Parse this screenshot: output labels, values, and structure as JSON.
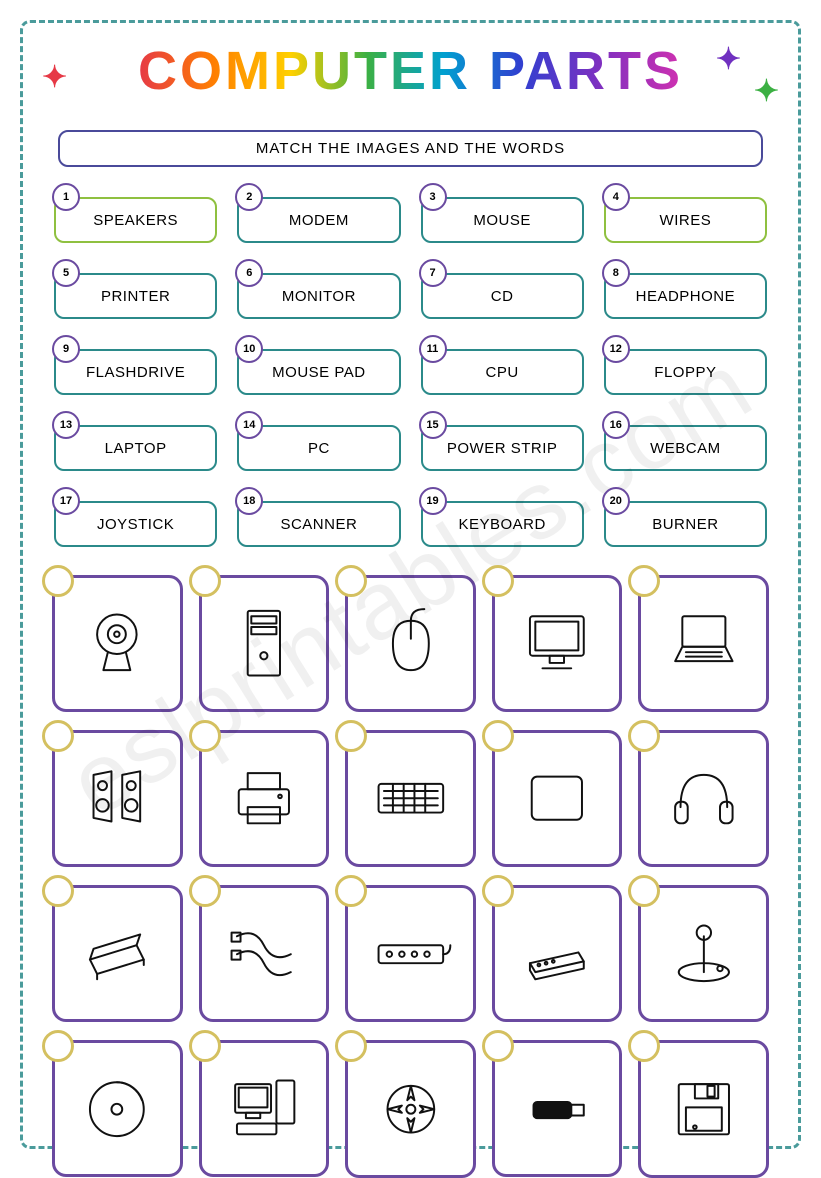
{
  "title": "COMPUTER PARTS",
  "instruction": "MATCH THE IMAGES AND THE WORDS",
  "watermark": "eslprintables.com",
  "word_box": {
    "green_border": "#8fc040",
    "teal_border": "#2b8a8a",
    "badge_border": "#6a4aa0"
  },
  "image_box": {
    "border": "#6a4aa0",
    "badge_border": "#d4c060"
  },
  "words": [
    {
      "n": "1",
      "label": "SPEAKERS",
      "style": "green"
    },
    {
      "n": "2",
      "label": "MODEM",
      "style": "teal"
    },
    {
      "n": "3",
      "label": "MOUSE",
      "style": "teal"
    },
    {
      "n": "4",
      "label": "WIRES",
      "style": "green"
    },
    {
      "n": "5",
      "label": "PRINTER",
      "style": "teal"
    },
    {
      "n": "6",
      "label": "MONITOR",
      "style": "teal"
    },
    {
      "n": "7",
      "label": "CD",
      "style": "teal"
    },
    {
      "n": "8",
      "label": "HEADPHONE",
      "style": "teal"
    },
    {
      "n": "9",
      "label": "FLASHDRIVE",
      "style": "teal"
    },
    {
      "n": "10",
      "label": "MOUSE PAD",
      "style": "teal"
    },
    {
      "n": "11",
      "label": "CPU",
      "style": "teal"
    },
    {
      "n": "12",
      "label": "FLOPPY",
      "style": "teal"
    },
    {
      "n": "13",
      "label": "LAPTOP",
      "style": "teal"
    },
    {
      "n": "14",
      "label": "PC",
      "style": "teal"
    },
    {
      "n": "15",
      "label": "POWER STRIP",
      "style": "teal"
    },
    {
      "n": "16",
      "label": "WEBCAM",
      "style": "teal"
    },
    {
      "n": "17",
      "label": "JOYSTICK",
      "style": "teal"
    },
    {
      "n": "18",
      "label": "SCANNER",
      "style": "teal"
    },
    {
      "n": "19",
      "label": "KEYBOARD",
      "style": "teal"
    },
    {
      "n": "20",
      "label": "BURNER",
      "style": "teal"
    }
  ],
  "images": [
    {
      "icon": "webcam"
    },
    {
      "icon": "tower"
    },
    {
      "icon": "mouse"
    },
    {
      "icon": "monitor"
    },
    {
      "icon": "laptop"
    },
    {
      "icon": "speakers"
    },
    {
      "icon": "printer"
    },
    {
      "icon": "keyboard"
    },
    {
      "icon": "mousepad"
    },
    {
      "icon": "headphones"
    },
    {
      "icon": "scanner"
    },
    {
      "icon": "wires"
    },
    {
      "icon": "powerstrip"
    },
    {
      "icon": "modem"
    },
    {
      "icon": "joystick"
    },
    {
      "icon": "cd"
    },
    {
      "icon": "pc"
    },
    {
      "icon": "burner"
    },
    {
      "icon": "flashdrive"
    },
    {
      "icon": "floppy"
    }
  ]
}
